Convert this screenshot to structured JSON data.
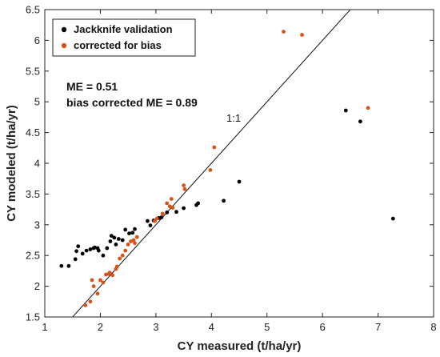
{
  "chart_data": {
    "type": "scatter",
    "xlabel": "CY measured (t/ha/yr)",
    "ylabel": "CY modeled (t/ha/yr)",
    "xlim": [
      1,
      8
    ],
    "ylim": [
      1.5,
      6.5
    ],
    "x_ticks": [
      "1",
      "2",
      "3",
      "4",
      "5",
      "6",
      "7",
      "8"
    ],
    "y_ticks": [
      "1.5",
      "2",
      "2.5",
      "3",
      "3.5",
      "4",
      "4.5",
      "5",
      "5.5",
      "6",
      "6.5"
    ],
    "grid": false,
    "legend_position": "top-left",
    "reference_line": {
      "label": "1:1",
      "slope": 1,
      "intercept": 0
    },
    "annotations": [
      "ME = 0.51",
      "bias corrected ME = 0.89"
    ],
    "series": [
      {
        "name": "Jackknife validation",
        "color": "#000000",
        "points": [
          [
            1.3,
            2.33
          ],
          [
            1.43,
            2.33
          ],
          [
            1.55,
            2.44
          ],
          [
            1.57,
            2.57
          ],
          [
            1.6,
            2.65
          ],
          [
            1.68,
            2.53
          ],
          [
            1.75,
            2.58
          ],
          [
            1.82,
            2.6
          ],
          [
            1.88,
            2.62
          ],
          [
            1.9,
            2.63
          ],
          [
            1.95,
            2.62
          ],
          [
            1.97,
            2.58
          ],
          [
            2.05,
            2.5
          ],
          [
            2.12,
            2.62
          ],
          [
            2.18,
            2.73
          ],
          [
            2.2,
            2.82
          ],
          [
            2.25,
            2.79
          ],
          [
            2.28,
            2.68
          ],
          [
            2.33,
            2.77
          ],
          [
            2.4,
            2.75
          ],
          [
            2.45,
            2.92
          ],
          [
            2.52,
            2.86
          ],
          [
            2.58,
            2.87
          ],
          [
            2.62,
            2.93
          ],
          [
            2.85,
            3.06
          ],
          [
            2.9,
            2.99
          ],
          [
            2.96,
            3.07
          ],
          [
            3.05,
            3.11
          ],
          [
            3.1,
            3.12
          ],
          [
            3.2,
            3.2
          ],
          [
            3.3,
            3.28
          ],
          [
            3.37,
            3.21
          ],
          [
            3.5,
            3.27
          ],
          [
            3.73,
            3.32
          ],
          [
            3.76,
            3.35
          ],
          [
            4.22,
            3.39
          ],
          [
            4.5,
            3.7
          ],
          [
            6.42,
            4.86
          ],
          [
            6.68,
            4.68
          ],
          [
            7.27,
            3.1
          ]
        ]
      },
      {
        "name": "corrected for bias",
        "color": "#d95319",
        "points": [
          [
            1.73,
            1.69
          ],
          [
            1.82,
            1.75
          ],
          [
            1.85,
            2.1
          ],
          [
            1.88,
            2.0
          ],
          [
            1.95,
            1.88
          ],
          [
            2.0,
            2.1
          ],
          [
            2.05,
            2.06
          ],
          [
            2.1,
            2.19
          ],
          [
            2.15,
            2.2
          ],
          [
            2.17,
            2.22
          ],
          [
            2.22,
            2.18
          ],
          [
            2.28,
            2.28
          ],
          [
            2.3,
            2.32
          ],
          [
            2.35,
            2.45
          ],
          [
            2.4,
            2.5
          ],
          [
            2.45,
            2.58
          ],
          [
            2.5,
            2.68
          ],
          [
            2.55,
            2.73
          ],
          [
            2.6,
            2.75
          ],
          [
            2.62,
            2.7
          ],
          [
            2.66,
            2.8
          ],
          [
            2.98,
            3.06
          ],
          [
            3.02,
            3.1
          ],
          [
            3.12,
            3.18
          ],
          [
            3.2,
            3.35
          ],
          [
            3.25,
            3.3
          ],
          [
            3.28,
            3.42
          ],
          [
            3.3,
            3.28
          ],
          [
            3.5,
            3.64
          ],
          [
            3.52,
            3.58
          ],
          [
            3.98,
            3.89
          ],
          [
            4.05,
            4.26
          ],
          [
            5.3,
            6.14
          ],
          [
            5.63,
            6.09
          ],
          [
            6.82,
            4.9
          ]
        ]
      }
    ]
  }
}
